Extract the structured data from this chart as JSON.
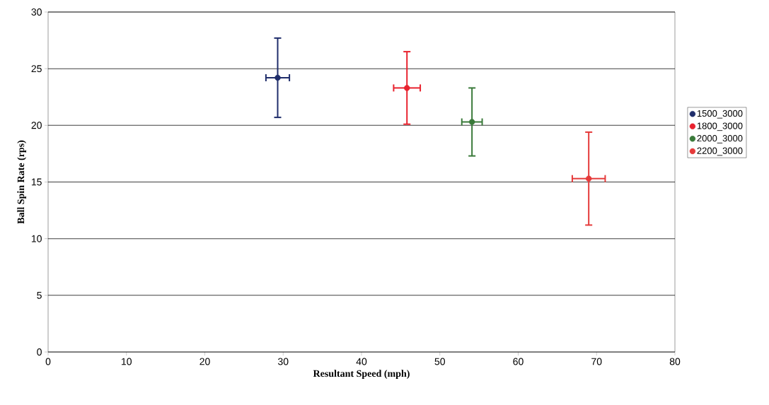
{
  "chart_data": {
    "type": "scatter",
    "xlabel": "Resultant Speed (mph)",
    "ylabel": "Ball Spin Rate (rps)",
    "xlim": [
      0,
      80
    ],
    "xticks": [
      0,
      10,
      20,
      30,
      40,
      50,
      60,
      70,
      80
    ],
    "ylim": [
      0,
      30
    ],
    "yticks": [
      0,
      5,
      10,
      15,
      20,
      25,
      30
    ],
    "grid": "y",
    "legend": "right",
    "series": [
      {
        "name": "1500_3000",
        "color": "#1f2d6b",
        "x": [
          29.3
        ],
        "values": [
          24.2
        ],
        "errors": [
          3.5
        ],
        "xerrors": [
          1.5
        ]
      },
      {
        "name": "1800_3000",
        "color": "#e8222e",
        "x": [
          45.8
        ],
        "values": [
          23.3
        ],
        "errors": [
          3.2
        ],
        "xerrors": [
          1.7
        ]
      },
      {
        "name": "2000_3000",
        "color": "#3a7a3a",
        "x": [
          54.1
        ],
        "values": [
          20.3
        ],
        "errors": [
          3.0
        ],
        "xerrors": [
          1.3
        ]
      },
      {
        "name": "2200_3000",
        "color": "#e53a3a",
        "x": [
          69.0
        ],
        "values": [
          15.3
        ],
        "errors": [
          4.1
        ],
        "xerrors": [
          2.1
        ]
      }
    ]
  }
}
